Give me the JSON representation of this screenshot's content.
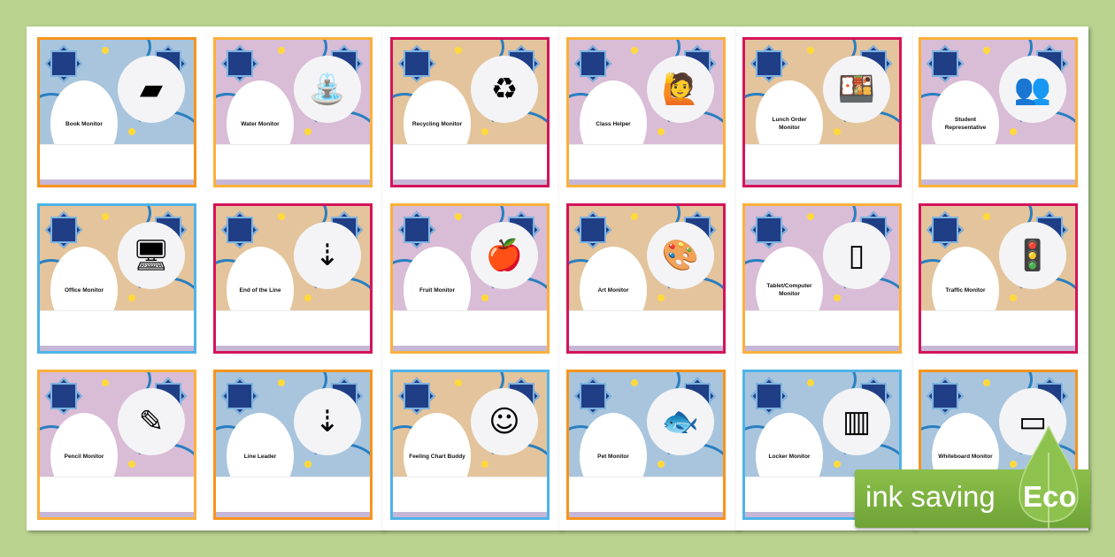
{
  "colors": {
    "background": "#b9d38f",
    "orange": "#f7941d",
    "amber": "#fbb03b",
    "crimson": "#d4145a",
    "sky": "#4fb3e8",
    "eco_green": "#7ab040"
  },
  "pattern_colors": {
    "blue": "#a9c5dd",
    "purple": "#d9bcd6",
    "tan": "#e4c49c"
  },
  "cards": [
    {
      "label": "Book Monitor",
      "icon": "book-icon",
      "glyph": "▰",
      "border": "orange",
      "pattern": "blue"
    },
    {
      "label": "Water Monitor",
      "icon": "water-fountain-icon",
      "glyph": "⛲",
      "border": "amber",
      "pattern": "purple"
    },
    {
      "label": "Recycling Monitor",
      "icon": "recycling-bin-icon",
      "glyph": "♻",
      "border": "crimson",
      "pattern": "tan"
    },
    {
      "label": "Class Helper",
      "icon": "helper-person-icon",
      "glyph": "🙋",
      "border": "amber",
      "pattern": "purple"
    },
    {
      "label": "Lunch Order Monitor",
      "icon": "lunch-tray-icon",
      "glyph": "🍱",
      "border": "crimson",
      "pattern": "tan"
    },
    {
      "label": "Student Representative",
      "icon": "student-group-icon",
      "glyph": "👥",
      "border": "amber",
      "pattern": "purple"
    },
    {
      "label": "Office Monitor",
      "icon": "desk-icon",
      "glyph": "🖥",
      "border": "sky",
      "pattern": "tan"
    },
    {
      "label": "End of the Line",
      "icon": "line-end-icon",
      "glyph": "⇣",
      "border": "crimson",
      "pattern": "tan"
    },
    {
      "label": "Fruit Monitor",
      "icon": "fruit-bowl-icon",
      "glyph": "🍎",
      "border": "amber",
      "pattern": "purple"
    },
    {
      "label": "Art Monitor",
      "icon": "paint-palette-icon",
      "glyph": "🎨",
      "border": "crimson",
      "pattern": "tan"
    },
    {
      "label": "Tablet/Computer Monitor",
      "icon": "tablet-icon",
      "glyph": "▯",
      "border": "amber",
      "pattern": "purple"
    },
    {
      "label": "Traffic Monitor",
      "icon": "traffic-light-icon",
      "glyph": "🚦",
      "border": "crimson",
      "pattern": "tan"
    },
    {
      "label": "Pencil Monitor",
      "icon": "pencil-icon",
      "glyph": "✎",
      "border": "amber",
      "pattern": "purple"
    },
    {
      "label": "Line Leader",
      "icon": "line-leader-icon",
      "glyph": "⇣",
      "border": "orange",
      "pattern": "blue"
    },
    {
      "label": "Feeling Chart Buddy",
      "icon": "smiley-face-icon",
      "glyph": "☺",
      "border": "sky",
      "pattern": "tan"
    },
    {
      "label": "Pet Monitor",
      "icon": "fishbowl-icon",
      "glyph": "🐟",
      "border": "orange",
      "pattern": "blue"
    },
    {
      "label": "Locker Monitor",
      "icon": "lockers-icon",
      "glyph": "▥",
      "border": "sky",
      "pattern": "blue"
    },
    {
      "label": "Whiteboard Monitor",
      "icon": "whiteboard-icon",
      "glyph": "▭",
      "border": "orange",
      "pattern": "blue"
    }
  ],
  "eco_badge": {
    "text": "ink saving",
    "word": "Eco"
  }
}
